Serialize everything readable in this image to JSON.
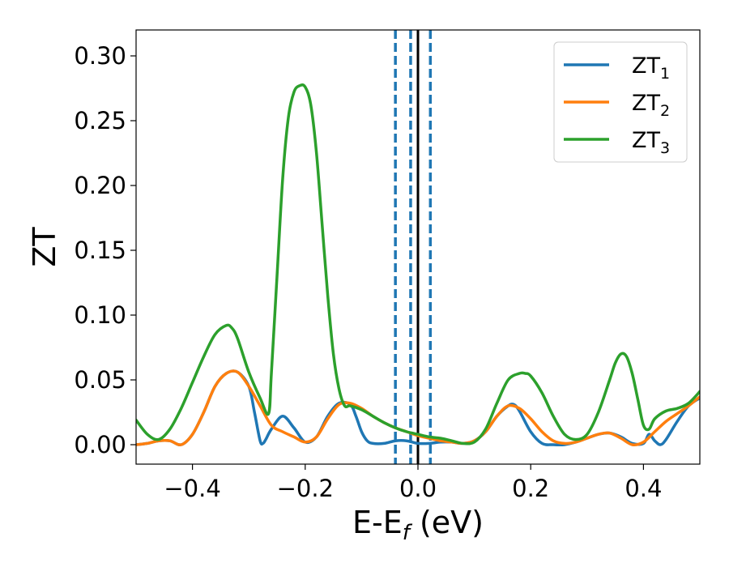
{
  "chart_data": {
    "type": "line",
    "xlabel": "E-E",
    "xlabel_sub": "f",
    "xlabel_unit": " (eV)",
    "ylabel": "ZT",
    "xlim": [
      -0.5,
      0.5
    ],
    "ylim": [
      -0.015,
      0.32
    ],
    "x_ticks": [
      -0.4,
      -0.2,
      0.0,
      0.2,
      0.4
    ],
    "x_tick_labels": [
      "−0.4",
      "−0.2",
      "0.0",
      "0.2",
      "0.4"
    ],
    "y_ticks": [
      0.0,
      0.05,
      0.1,
      0.15,
      0.2,
      0.25,
      0.3
    ],
    "y_tick_labels": [
      "0.00",
      "0.05",
      "0.10",
      "0.15",
      "0.20",
      "0.25",
      "0.30"
    ],
    "grid": false,
    "legend_position": "top-right",
    "vertical_lines": [
      {
        "x": -0.04,
        "style": "dashed",
        "color": "#1f77b4"
      },
      {
        "x": -0.013,
        "style": "dashed",
        "color": "#1f77b4"
      },
      {
        "x": 0.0,
        "style": "solid",
        "color": "#000000"
      },
      {
        "x": 0.022,
        "style": "dashed",
        "color": "#1f77b4"
      }
    ],
    "series": [
      {
        "name": "ZT",
        "name_sub": "1",
        "color": "#1f77b4",
        "x": [
          -0.5,
          -0.48,
          -0.46,
          -0.44,
          -0.42,
          -0.4,
          -0.38,
          -0.36,
          -0.34,
          -0.32,
          -0.3,
          -0.29,
          -0.28,
          -0.275,
          -0.27,
          -0.26,
          -0.24,
          -0.22,
          -0.2,
          -0.18,
          -0.16,
          -0.14,
          -0.12,
          -0.11,
          -0.1,
          -0.09,
          -0.08,
          -0.06,
          -0.04,
          -0.02,
          0.0,
          0.02,
          0.04,
          0.06,
          0.08,
          0.1,
          0.12,
          0.14,
          0.16,
          0.17,
          0.18,
          0.2,
          0.22,
          0.24,
          0.26,
          0.28,
          0.3,
          0.32,
          0.34,
          0.36,
          0.38,
          0.4,
          0.41,
          0.42,
          0.43,
          0.44,
          0.46,
          0.48,
          0.5
        ],
        "y": [
          0.0,
          0.001,
          0.003,
          0.003,
          0.0,
          0.008,
          0.025,
          0.045,
          0.055,
          0.056,
          0.045,
          0.025,
          0.003,
          0.001,
          0.004,
          0.012,
          0.022,
          0.013,
          0.002,
          0.006,
          0.022,
          0.032,
          0.031,
          0.022,
          0.01,
          0.003,
          0.001,
          0.001,
          0.003,
          0.003,
          0.001,
          0.001,
          0.002,
          0.002,
          0.001,
          0.003,
          0.01,
          0.022,
          0.03,
          0.031,
          0.026,
          0.01,
          0.001,
          0.0,
          0.0,
          0.002,
          0.005,
          0.008,
          0.009,
          0.006,
          0.001,
          0.001,
          0.008,
          0.003,
          0.0,
          0.004,
          0.018,
          0.03,
          0.036
        ]
      },
      {
        "name": "ZT",
        "name_sub": "2",
        "color": "#ff7f0e",
        "x": [
          -0.5,
          -0.48,
          -0.46,
          -0.44,
          -0.42,
          -0.4,
          -0.38,
          -0.36,
          -0.34,
          -0.32,
          -0.3,
          -0.28,
          -0.26,
          -0.24,
          -0.22,
          -0.2,
          -0.18,
          -0.16,
          -0.14,
          -0.12,
          -0.1,
          -0.08,
          -0.06,
          -0.04,
          -0.02,
          0.0,
          0.02,
          0.04,
          0.06,
          0.08,
          0.1,
          0.12,
          0.14,
          0.16,
          0.18,
          0.2,
          0.22,
          0.24,
          0.26,
          0.28,
          0.3,
          0.32,
          0.34,
          0.36,
          0.38,
          0.4,
          0.42,
          0.44,
          0.46,
          0.48,
          0.5
        ],
        "y": [
          0.0,
          0.001,
          0.003,
          0.003,
          0.0,
          0.008,
          0.025,
          0.045,
          0.055,
          0.056,
          0.045,
          0.03,
          0.015,
          0.01,
          0.006,
          0.002,
          0.006,
          0.02,
          0.031,
          0.032,
          0.028,
          0.022,
          0.017,
          0.013,
          0.01,
          0.007,
          0.005,
          0.003,
          0.002,
          0.001,
          0.003,
          0.01,
          0.022,
          0.03,
          0.028,
          0.02,
          0.01,
          0.003,
          0.001,
          0.002,
          0.005,
          0.008,
          0.009,
          0.005,
          0.0,
          0.002,
          0.01,
          0.018,
          0.024,
          0.03,
          0.037
        ]
      },
      {
        "name": "ZT",
        "name_sub": "3",
        "color": "#2ca02c",
        "x": [
          -0.5,
          -0.48,
          -0.46,
          -0.44,
          -0.42,
          -0.4,
          -0.38,
          -0.36,
          -0.34,
          -0.33,
          -0.32,
          -0.3,
          -0.28,
          -0.265,
          -0.26,
          -0.25,
          -0.24,
          -0.23,
          -0.22,
          -0.21,
          -0.2,
          -0.19,
          -0.18,
          -0.17,
          -0.16,
          -0.15,
          -0.14,
          -0.13,
          -0.12,
          -0.1,
          -0.08,
          -0.06,
          -0.04,
          -0.02,
          0.0,
          0.02,
          0.04,
          0.06,
          0.08,
          0.1,
          0.12,
          0.14,
          0.16,
          0.18,
          0.19,
          0.2,
          0.22,
          0.24,
          0.26,
          0.28,
          0.3,
          0.32,
          0.34,
          0.35,
          0.36,
          0.37,
          0.38,
          0.39,
          0.4,
          0.41,
          0.42,
          0.44,
          0.46,
          0.48,
          0.5
        ],
        "y": [
          0.019,
          0.008,
          0.004,
          0.012,
          0.028,
          0.048,
          0.068,
          0.085,
          0.092,
          0.09,
          0.082,
          0.056,
          0.036,
          0.024,
          0.055,
          0.13,
          0.205,
          0.252,
          0.272,
          0.277,
          0.276,
          0.262,
          0.225,
          0.17,
          0.115,
          0.07,
          0.043,
          0.03,
          0.03,
          0.027,
          0.022,
          0.017,
          0.013,
          0.01,
          0.008,
          0.006,
          0.005,
          0.003,
          0.001,
          0.002,
          0.012,
          0.032,
          0.05,
          0.055,
          0.055,
          0.053,
          0.04,
          0.022,
          0.008,
          0.004,
          0.008,
          0.025,
          0.05,
          0.063,
          0.07,
          0.068,
          0.055,
          0.035,
          0.015,
          0.012,
          0.02,
          0.026,
          0.028,
          0.032,
          0.041
        ]
      }
    ]
  }
}
